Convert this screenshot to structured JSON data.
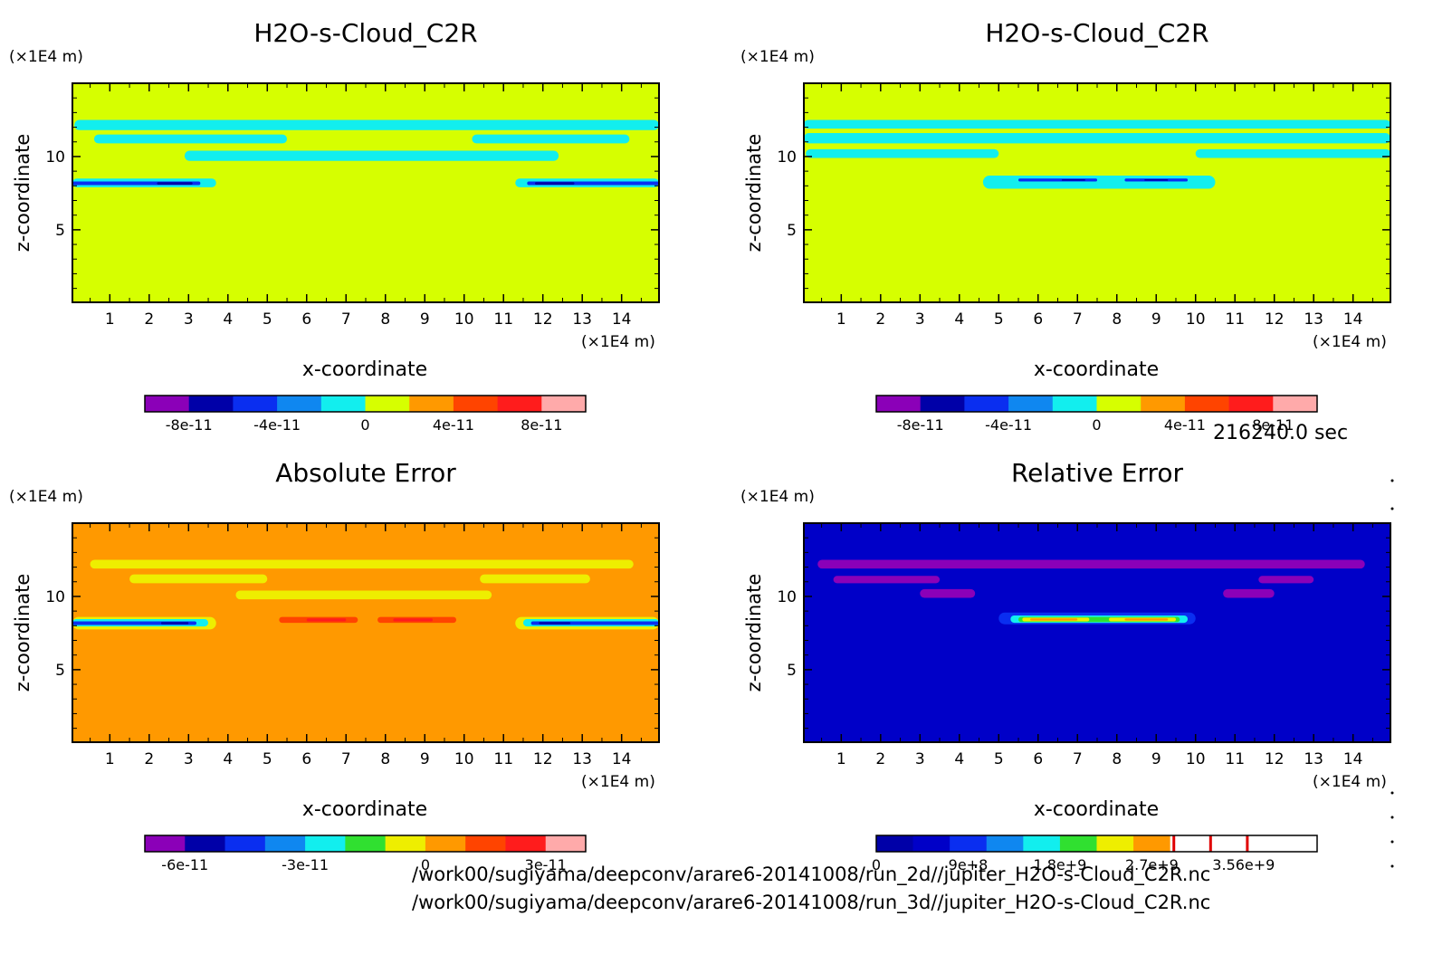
{
  "colors": {
    "purple": "#8b00b8",
    "navy": "#0000a8",
    "blue": "#0a2ef0",
    "lightblue": "#0f87f0",
    "cyan": "#12eeee",
    "yellowgreen": "#d6ff00",
    "yellow": "#eeee00",
    "green": "#30e030",
    "orange": "#ff9900",
    "redorange": "#ff4400",
    "red": "#ff1c1c",
    "pink": "#ffaaaa",
    "darkblue": "#0000c8",
    "white": "#ffffff",
    "redline": "#e00000"
  },
  "time_label": "216240.0 sec",
  "file_paths": [
    "/work00/sugiyama/deepconv/arare6-20141008/run_2d//jupiter_H2O-s-Cloud_C2R.nc",
    "/work00/sugiyama/deepconv/arare6-20141008/run_3d//jupiter_H2O-s-Cloud_C2R.nc"
  ],
  "chart_data": [
    {
      "type": "heatmap",
      "title": "H2O-s-Cloud_C2R",
      "xlabel": "x-coordinate",
      "ylabel": "z-coordinate",
      "x_unit": "(×1E4 m)",
      "y_unit": "(×1E4 m)",
      "x_ticks": [
        1,
        2,
        3,
        4,
        5,
        6,
        7,
        8,
        9,
        10,
        11,
        12,
        13,
        14
      ],
      "y_ticks": [
        5,
        10
      ],
      "xlim": [
        0.05,
        14.95
      ],
      "ylim": [
        0.05,
        15
      ],
      "background": "yellowgreen",
      "colorbar": {
        "colors": [
          "purple",
          "navy",
          "blue",
          "lightblue",
          "cyan",
          "yellowgreen",
          "orange",
          "redorange",
          "red",
          "pink"
        ],
        "tick_labels": [
          "-8e-11",
          "-4e-11",
          "0",
          "4e-11",
          "8e-11"
        ],
        "tick_positions": [
          1,
          3,
          5,
          7,
          9
        ]
      },
      "regions": [
        {
          "color": "cyan",
          "x0": 0.1,
          "x1": 14.95,
          "z0": 11.8,
          "z1": 12.5
        },
        {
          "color": "cyan",
          "x0": 0.6,
          "x1": 5.5,
          "z0": 10.9,
          "z1": 11.5
        },
        {
          "color": "cyan",
          "x0": 10.2,
          "x1": 14.2,
          "z0": 10.9,
          "z1": 11.5
        },
        {
          "color": "cyan",
          "x0": 2.9,
          "x1": 12.4,
          "z0": 9.7,
          "z1": 10.4
        },
        {
          "color": "cyan",
          "x0": 0.05,
          "x1": 3.7,
          "z0": 7.9,
          "z1": 8.5
        },
        {
          "color": "cyan",
          "x0": 11.3,
          "x1": 14.95,
          "z0": 7.9,
          "z1": 8.5
        },
        {
          "color": "blue",
          "x0": 0.05,
          "x1": 3.3,
          "z0": 8.05,
          "z1": 8.3
        },
        {
          "color": "blue",
          "x0": 11.6,
          "x1": 14.95,
          "z0": 8.05,
          "z1": 8.3
        },
        {
          "color": "navy",
          "x0": 2.2,
          "x1": 3.1,
          "z0": 8.08,
          "z1": 8.25
        },
        {
          "color": "navy",
          "x0": 11.8,
          "x1": 12.8,
          "z0": 8.08,
          "z1": 8.25
        }
      ]
    },
    {
      "type": "heatmap",
      "title": "H2O-s-Cloud_C2R",
      "xlabel": "x-coordinate",
      "ylabel": "z-coordinate",
      "x_unit": "(×1E4 m)",
      "y_unit": "(×1E4 m)",
      "x_ticks": [
        1,
        2,
        3,
        4,
        5,
        6,
        7,
        8,
        9,
        10,
        11,
        12,
        13,
        14
      ],
      "y_ticks": [
        5,
        10
      ],
      "xlim": [
        0.05,
        14.95
      ],
      "ylim": [
        0.05,
        15
      ],
      "background": "yellowgreen",
      "colorbar": {
        "colors": [
          "purple",
          "navy",
          "blue",
          "lightblue",
          "cyan",
          "yellowgreen",
          "orange",
          "redorange",
          "red",
          "pink"
        ],
        "tick_labels": [
          "-8e-11",
          "-4e-11",
          "0",
          "4e-11",
          "8e-11"
        ],
        "tick_positions": [
          1,
          3,
          5,
          7,
          9
        ]
      },
      "regions": [
        {
          "color": "cyan",
          "x0": 0.05,
          "x1": 14.95,
          "z0": 11.9,
          "z1": 12.5
        },
        {
          "color": "cyan",
          "x0": 0.05,
          "x1": 14.95,
          "z0": 10.9,
          "z1": 11.6
        },
        {
          "color": "cyan",
          "x0": 0.1,
          "x1": 5.0,
          "z0": 9.9,
          "z1": 10.5
        },
        {
          "color": "cyan",
          "x0": 10.0,
          "x1": 14.95,
          "z0": 9.9,
          "z1": 10.5
        },
        {
          "color": "cyan",
          "x0": 4.6,
          "x1": 10.5,
          "z0": 7.8,
          "z1": 8.7
        },
        {
          "color": "blue",
          "x0": 5.5,
          "x1": 7.5,
          "z0": 8.3,
          "z1": 8.5
        },
        {
          "color": "blue",
          "x0": 8.2,
          "x1": 9.8,
          "z0": 8.3,
          "z1": 8.5
        },
        {
          "color": "navy",
          "x0": 6.6,
          "x1": 7.2,
          "z0": 8.35,
          "z1": 8.45
        },
        {
          "color": "navy",
          "x0": 8.7,
          "x1": 9.3,
          "z0": 8.35,
          "z1": 8.45
        }
      ]
    },
    {
      "type": "heatmap",
      "title": "Absolute Error",
      "xlabel": "x-coordinate",
      "ylabel": "z-coordinate",
      "x_unit": "(×1E4 m)",
      "y_unit": "(×1E4 m)",
      "x_ticks": [
        1,
        2,
        3,
        4,
        5,
        6,
        7,
        8,
        9,
        10,
        11,
        12,
        13,
        14
      ],
      "y_ticks": [
        5,
        10
      ],
      "xlim": [
        0.05,
        14.95
      ],
      "ylim": [
        0.05,
        15
      ],
      "background": "orange",
      "colorbar": {
        "colors": [
          "purple",
          "navy",
          "blue",
          "lightblue",
          "cyan",
          "green",
          "yellow",
          "orange",
          "redorange",
          "red",
          "pink"
        ],
        "tick_labels": [
          "-6e-11",
          "-3e-11",
          "0",
          "3e-11"
        ],
        "tick_positions": [
          1,
          4,
          7,
          10
        ]
      },
      "regions": [
        {
          "color": "yellow",
          "x0": 0.5,
          "x1": 14.3,
          "z0": 11.9,
          "z1": 12.5
        },
        {
          "color": "yellow",
          "x0": 1.5,
          "x1": 5.0,
          "z0": 10.9,
          "z1": 11.5
        },
        {
          "color": "yellow",
          "x0": 10.4,
          "x1": 13.2,
          "z0": 10.9,
          "z1": 11.5
        },
        {
          "color": "yellow",
          "x0": 4.2,
          "x1": 10.7,
          "z0": 9.8,
          "z1": 10.4
        },
        {
          "color": "yellow",
          "x0": 0.05,
          "x1": 3.7,
          "z0": 7.75,
          "z1": 8.6
        },
        {
          "color": "yellow",
          "x0": 11.3,
          "x1": 14.95,
          "z0": 7.75,
          "z1": 8.6
        },
        {
          "color": "cyan",
          "x0": 0.05,
          "x1": 3.5,
          "z0": 7.95,
          "z1": 8.45
        },
        {
          "color": "cyan",
          "x0": 11.5,
          "x1": 14.95,
          "z0": 7.95,
          "z1": 8.45
        },
        {
          "color": "blue",
          "x0": 0.05,
          "x1": 3.2,
          "z0": 8.05,
          "z1": 8.3
        },
        {
          "color": "blue",
          "x0": 11.7,
          "x1": 14.95,
          "z0": 8.05,
          "z1": 8.3
        },
        {
          "color": "navy",
          "x0": 2.3,
          "x1": 3.0,
          "z0": 8.1,
          "z1": 8.25
        },
        {
          "color": "navy",
          "x0": 11.9,
          "x1": 12.7,
          "z0": 8.1,
          "z1": 8.25
        },
        {
          "color": "redorange",
          "x0": 5.3,
          "x1": 7.3,
          "z0": 8.2,
          "z1": 8.6
        },
        {
          "color": "redorange",
          "x0": 7.8,
          "x1": 9.8,
          "z0": 8.2,
          "z1": 8.6
        },
        {
          "color": "red",
          "x0": 6.0,
          "x1": 7.0,
          "z0": 8.3,
          "z1": 8.5
        },
        {
          "color": "red",
          "x0": 8.2,
          "x1": 9.2,
          "z0": 8.3,
          "z1": 8.5
        }
      ]
    },
    {
      "type": "heatmap",
      "title": "Relative Error",
      "xlabel": "x-coordinate",
      "ylabel": "z-coordinate",
      "x_unit": "(×1E4 m)",
      "y_unit": "(×1E4 m)",
      "x_ticks": [
        1,
        2,
        3,
        4,
        5,
        6,
        7,
        8,
        9,
        10,
        11,
        12,
        13,
        14
      ],
      "y_ticks": [
        5,
        10
      ],
      "xlim": [
        0.05,
        14.95
      ],
      "ylim": [
        0.05,
        15
      ],
      "background": "darkblue",
      "colorbar": {
        "colors": [
          "navy",
          "darkblue",
          "blue",
          "lightblue",
          "cyan",
          "green",
          "yellow",
          "orange",
          "white",
          "white",
          "white",
          "white"
        ],
        "tick_labels": [
          "0",
          "9e+8",
          "1.8e+9",
          "2.7e+9",
          "3.56e+9"
        ],
        "tick_positions": [
          0,
          2.5,
          5,
          7.5,
          10
        ],
        "marker_lines": [
          8.1,
          9.1,
          10.1
        ]
      },
      "regions": [
        {
          "color": "purple",
          "x0": 0.4,
          "x1": 14.3,
          "z0": 11.9,
          "z1": 12.5
        },
        {
          "color": "purple",
          "x0": 0.8,
          "x1": 3.5,
          "z0": 10.9,
          "z1": 11.4
        },
        {
          "color": "purple",
          "x0": 11.6,
          "x1": 13.0,
          "z0": 10.9,
          "z1": 11.4
        },
        {
          "color": "purple",
          "x0": 3.0,
          "x1": 4.4,
          "z0": 9.9,
          "z1": 10.5
        },
        {
          "color": "purple",
          "x0": 10.7,
          "x1": 12.0,
          "z0": 9.9,
          "z1": 10.5
        },
        {
          "color": "blue",
          "x0": 5.0,
          "x1": 10.0,
          "z0": 8.1,
          "z1": 8.9
        },
        {
          "color": "cyan",
          "x0": 5.3,
          "x1": 9.8,
          "z0": 8.2,
          "z1": 8.7
        },
        {
          "color": "green",
          "x0": 5.5,
          "x1": 9.6,
          "z0": 8.25,
          "z1": 8.6
        },
        {
          "color": "yellow",
          "x0": 5.6,
          "x1": 7.3,
          "z0": 8.3,
          "z1": 8.55
        },
        {
          "color": "yellow",
          "x0": 7.8,
          "x1": 9.5,
          "z0": 8.3,
          "z1": 8.55
        },
        {
          "color": "orange",
          "x0": 5.8,
          "x1": 7.0,
          "z0": 8.35,
          "z1": 8.5
        },
        {
          "color": "orange",
          "x0": 8.2,
          "x1": 9.3,
          "z0": 8.35,
          "z1": 8.5
        }
      ]
    }
  ]
}
